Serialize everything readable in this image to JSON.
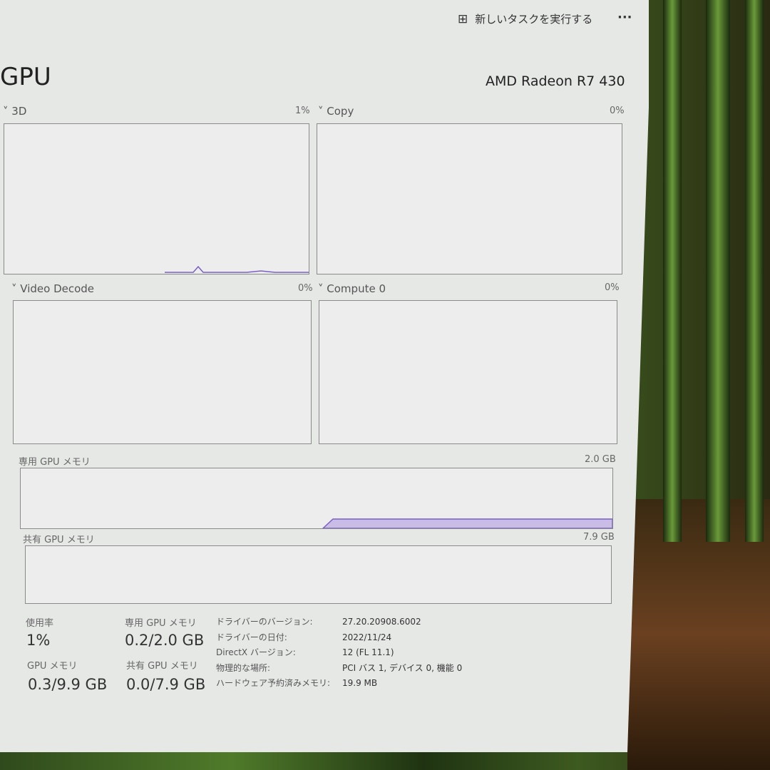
{
  "toolbar": {
    "new_task_label": "新しいタスクを実行する",
    "more_label": "···"
  },
  "header": {
    "title": "GPU",
    "device": "AMD Radeon R7 430"
  },
  "graphs": [
    {
      "label": "3D",
      "value": "1%"
    },
    {
      "label": "Copy",
      "value": "0%"
    },
    {
      "label": "Video Decode",
      "value": "0%"
    },
    {
      "label": "Compute 0",
      "value": "0%"
    }
  ],
  "memory_graphs": {
    "dedicated": {
      "label": "専用 GPU メモリ",
      "max": "2.0 GB"
    },
    "shared": {
      "label": "共有 GPU メモリ",
      "max": "7.9 GB"
    }
  },
  "stats": {
    "usage": {
      "label": "使用率",
      "value": "1%"
    },
    "dedicated": {
      "label": "専用 GPU メモリ",
      "value": "0.2/2.0 GB"
    },
    "gpu_memory": {
      "label": "GPU メモリ",
      "value": "0.3/9.9 GB"
    },
    "shared": {
      "label": "共有 GPU メモリ",
      "value": "0.0/7.9 GB"
    }
  },
  "details": [
    {
      "key": "ドライバーのバージョン:",
      "value": "27.20.20908.6002"
    },
    {
      "key": "ドライバーの日付:",
      "value": "2022/11/24"
    },
    {
      "key": "DirectX バージョン:",
      "value": "12 (FL 11.1)"
    },
    {
      "key": "物理的な場所:",
      "value": "PCI バス 1, デバイス 0, 機能 0"
    },
    {
      "key": "ハードウェア予約済みメモリ:",
      "value": "19.9 MB"
    }
  ],
  "colors": {
    "graph_line": "#7b5fc4",
    "graph_fill": "#c9bde8"
  }
}
